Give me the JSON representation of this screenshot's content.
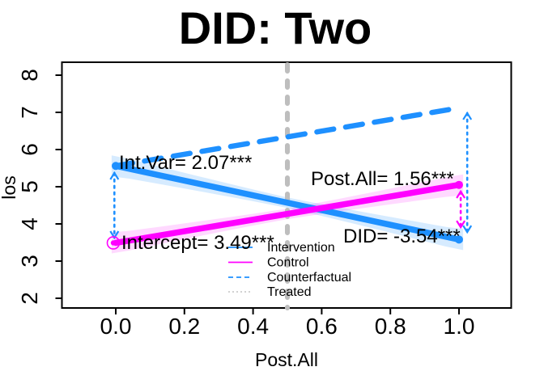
{
  "chart_data": {
    "type": "line",
    "title": "DID: Two",
    "xlabel": "Post.All",
    "ylabel": "los",
    "x_tick_labels": [
      "0.0",
      "0.2",
      "0.4",
      "0.6",
      "0.8",
      "1.0"
    ],
    "x_tick_values": [
      0.0,
      0.2,
      0.4,
      0.6,
      0.8,
      1.0
    ],
    "y_tick_labels": [
      "2",
      "3",
      "4",
      "5",
      "6",
      "7",
      "8"
    ],
    "y_tick_values": [
      2,
      3,
      4,
      5,
      6,
      7,
      8
    ],
    "xlim": [
      -0.16,
      1.15
    ],
    "ylim": [
      1.65,
      8.35
    ],
    "grid": false,
    "background": "#FFFFFF",
    "series": [
      {
        "name": "Intervention",
        "style": "solid",
        "color": "#1E90FF",
        "band": true,
        "band_color": "rgba(30,144,255,0.18)",
        "x": [
          0,
          1
        ],
        "y": [
          5.56,
          3.58
        ],
        "width": 7.5
      },
      {
        "name": "Control",
        "style": "solid",
        "color": "#FF00FF",
        "band": true,
        "band_color": "rgba(255,0,255,0.15)",
        "x": [
          0,
          1
        ],
        "y": [
          3.49,
          5.05
        ],
        "width": 7.5
      },
      {
        "name": "Counterfactual",
        "style": "dashed",
        "color": "#1E90FF",
        "band": false,
        "x": [
          0,
          1
        ],
        "y": [
          5.56,
          7.12
        ],
        "width": 6.5
      }
    ],
    "reference_line": {
      "x": 0.5,
      "color": "#BEBEBE",
      "style": "dashed",
      "width": 6
    },
    "indicator_lines": [
      {
        "x": -0.004,
        "y1": 5.37,
        "y2": 3.63,
        "color": "#1E90FF",
        "style": "dotted"
      },
      {
        "x": 1.024,
        "y1": 6.98,
        "y2": 3.78,
        "color": "#1E90FF",
        "style": "dotted"
      },
      {
        "x": 1.005,
        "y1": 4.87,
        "y2": 3.91,
        "color": "#FF00FF",
        "style": "dotted"
      }
    ],
    "points": [
      {
        "x": 0,
        "y": 5.56,
        "color": "#1E90FF",
        "marker": "dot"
      },
      {
        "x": 0,
        "y": 3.49,
        "color": "#FF00FF",
        "marker": "circled-dot"
      },
      {
        "x": 1,
        "y": 5.05,
        "color": "#FF00FF",
        "marker": "dot"
      },
      {
        "x": 1,
        "y": 3.58,
        "color": "#1E90FF",
        "marker": "dot"
      }
    ],
    "annotations": [
      {
        "text": "Int.Var= 2.07***",
        "value": 2.07,
        "significance": "***"
      },
      {
        "text": "Post.All= 1.56***",
        "value": 1.56,
        "significance": "***"
      },
      {
        "text": "Intercept= 3.49***",
        "value": 3.49,
        "significance": "***"
      },
      {
        "text": "DID= -3.54***",
        "value": -3.54,
        "significance": "***"
      }
    ],
    "legend": {
      "position": "bottom-center-inside",
      "entries": [
        {
          "label": "Intervention",
          "color": "#1E90FF",
          "style": "solid"
        },
        {
          "label": "Control",
          "color": "#FF00FF",
          "style": "solid"
        },
        {
          "label": "Counterfactual",
          "color": "#1E90FF",
          "style": "dashed"
        },
        {
          "label": "Treated",
          "color": "#CCCCCC",
          "style": "dotted"
        }
      ]
    },
    "colors": {
      "intervention": "#1E90FF",
      "control": "#FF00FF",
      "reference": "#BEBEBE",
      "text": "#000000",
      "background": "#FFFFFF"
    }
  }
}
